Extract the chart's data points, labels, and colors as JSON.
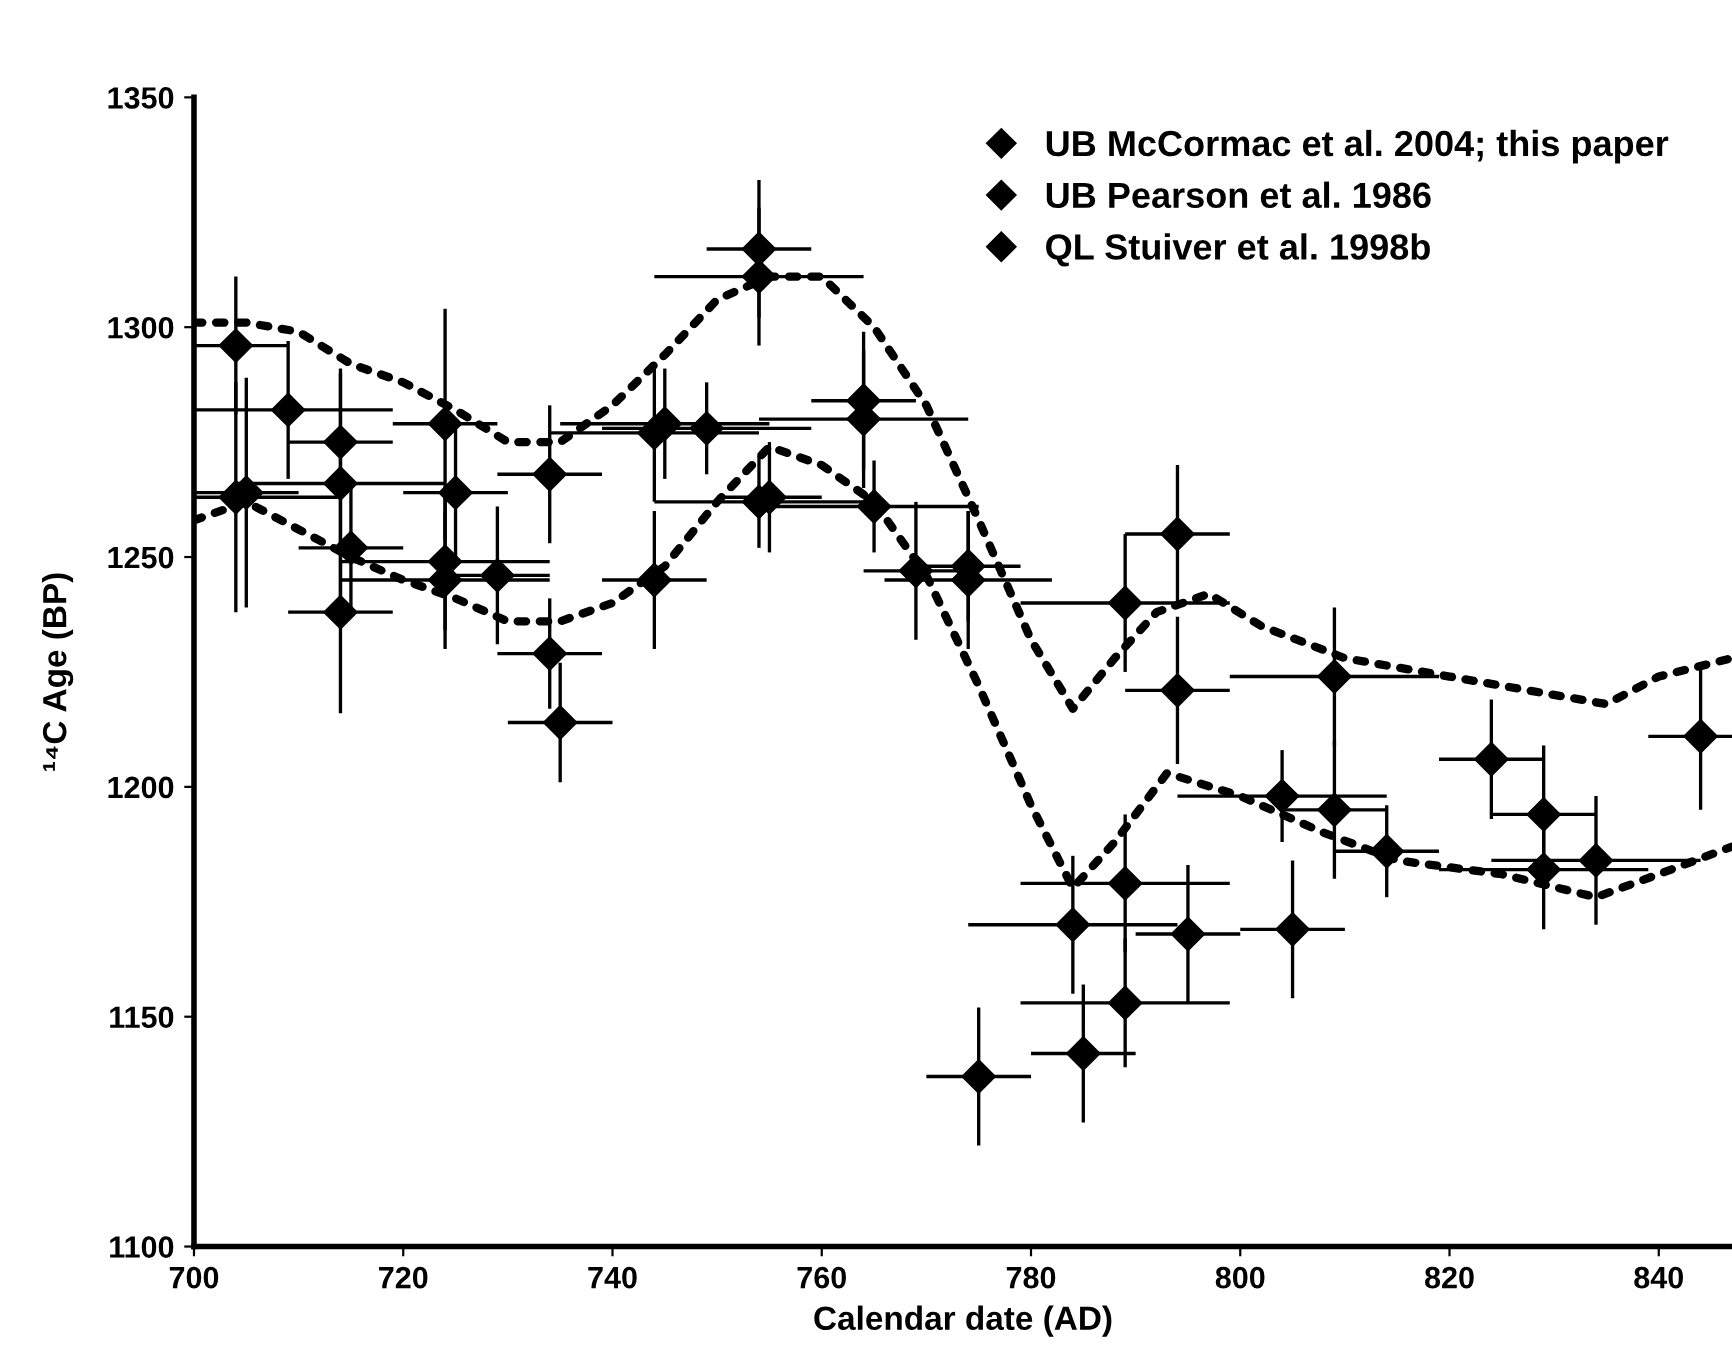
{
  "chart_data": {
    "type": "scatter",
    "xlabel": "Calendar date (AD)",
    "ylabel": "¹⁴C Age (BP)",
    "xlim": [
      700,
      847
    ],
    "ylim": [
      1100,
      1350
    ],
    "xticks": [
      700,
      720,
      740,
      760,
      780,
      800,
      820,
      840
    ],
    "yticks": [
      1100,
      1150,
      1200,
      1250,
      1300,
      1350
    ],
    "grid": false,
    "legend": "top right",
    "marker": "diamond",
    "series": [
      {
        "name": "UB McCormac et al. 2004; this paper",
        "color": "#000000",
        "x": [
          775,
          784,
          785,
          789,
          789,
          789,
          794,
          794,
          795,
          805,
          804,
          809,
          809,
          814,
          824,
          829,
          829,
          834,
          844
        ],
        "values": [
          1137,
          1170,
          1142,
          1179,
          1153,
          1240,
          1255,
          1221,
          1168,
          1169,
          1198,
          1195,
          1224,
          1186,
          1206,
          1194,
          1182,
          1184,
          1211
        ],
        "errors": [
          15,
          15,
          15,
          15,
          14,
          15,
          15,
          16,
          15,
          15,
          10,
          15,
          15,
          10,
          13,
          15,
          13,
          14,
          16
        ],
        "xerrors": [
          5,
          10,
          5,
          10,
          10,
          10,
          5,
          5,
          5,
          5,
          10,
          5,
          10,
          5,
          5,
          5,
          10,
          10,
          [
            839,
            847
          ]
        ]
      },
      {
        "name": "UB Pearson et al. 1986",
        "color": "#000000",
        "x": [
          704,
          704,
          709,
          714,
          714,
          715,
          714,
          724,
          725,
          724,
          724,
          729,
          734,
          734,
          735,
          744,
          745,
          744,
          749
        ],
        "values": [
          1296,
          1263,
          1282,
          1275,
          1266,
          1252,
          1238,
          1279,
          1264,
          1249,
          1245,
          1246,
          1268,
          1229,
          1214,
          1277,
          1279,
          1245,
          1278
        ],
        "errors": [
          15,
          25,
          15,
          15,
          25,
          15,
          22,
          25,
          15,
          15,
          15,
          15,
          15,
          12,
          13,
          15,
          12,
          15,
          10
        ],
        "xerrors": [
          5,
          10,
          10,
          5,
          10,
          5,
          5,
          5,
          5,
          10,
          10,
          5,
          5,
          5,
          5,
          10,
          10,
          5,
          10
        ]
      },
      {
        "name": "QL Stuiver et al. 1998b",
        "color": "#000000",
        "x": [
          754,
          754,
          754,
          755,
          764,
          764,
          765,
          769,
          774,
          774,
          705
        ],
        "values": [
          1317,
          1311,
          1262,
          1263,
          1284,
          1280,
          1261,
          1247,
          1248,
          1245,
          1264
        ],
        "errors": [
          15,
          15,
          10,
          12,
          15,
          15,
          10,
          15,
          12,
          15,
          25
        ],
        "xerrors": [
          5,
          10,
          10,
          5,
          5,
          10,
          10,
          5,
          5,
          8,
          5
        ]
      },
      {
        "type": "line",
        "color": "#000000",
        "line_style": "dotted",
        "marker": "none",
        "x": [
          700,
          705,
          710,
          715,
          720,
          725,
          730,
          735,
          740,
          745,
          750,
          755,
          760,
          765,
          770,
          775,
          780,
          784,
          788,
          792,
          797,
          802,
          810,
          820,
          830,
          835,
          840,
          847
        ],
        "values": [
          1301,
          1301,
          1299,
          1292,
          1288,
          1282,
          1275,
          1275,
          1283,
          1294,
          1306,
          1311,
          1311,
          1300,
          1283,
          1258,
          1232,
          1217,
          1228,
          1238,
          1242,
          1235,
          1228,
          1224,
          1220,
          1218,
          1224,
          1228
        ]
      },
      {
        "type": "line",
        "color": "#000000",
        "line_style": "dotted",
        "marker": "none",
        "x": [
          700,
          705,
          710,
          715,
          720,
          725,
          730,
          735,
          740,
          745,
          750,
          755,
          760,
          765,
          770,
          775,
          780,
          784,
          788,
          793,
          800,
          808,
          815,
          825,
          834,
          840,
          847
        ],
        "values": [
          1258,
          1262,
          1256,
          1250,
          1245,
          1241,
          1236,
          1236,
          1240,
          1248,
          1262,
          1274,
          1270,
          1262,
          1246,
          1222,
          1196,
          1178,
          1188,
          1203,
          1198,
          1190,
          1184,
          1181,
          1176,
          1181,
          1187
        ]
      }
    ]
  }
}
